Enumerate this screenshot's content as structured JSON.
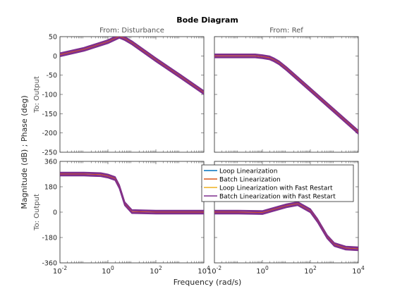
{
  "chart_data": {
    "type": "line",
    "title": "Bode Diagram",
    "xlabel": "Frequency  (rad/s)",
    "ylabel": "Magnitude (dB) ; Phase (deg)",
    "row_label": "To: Output",
    "x_scale": "log",
    "xlim": [
      0.01,
      10000
    ],
    "x_ticks": [
      0.01,
      1,
      100,
      10000
    ],
    "x_tick_labels": [
      [
        "10",
        "-2"
      ],
      [
        "10",
        "0"
      ],
      [
        "10",
        "2"
      ],
      [
        "10",
        "4"
      ]
    ],
    "grid": false,
    "legend_position": "upper-right of bottom-right panel",
    "series": [
      {
        "name": "Loop Linearization",
        "color": "#0072BD"
      },
      {
        "name": "Batch Linearization",
        "color": "#D95319"
      },
      {
        "name": "Loop Linearization with Fast Restart",
        "color": "#EDB120"
      },
      {
        "name": "Batch Linearization with Fast Restart",
        "color": "#7E2F8E"
      }
    ],
    "panels": [
      {
        "id": "mag-disturbance",
        "col_title": "From: Disturbance",
        "kind": "magnitude",
        "ylim": [
          -250,
          50
        ],
        "y_ticks": [
          50,
          0,
          -50,
          -100,
          -150,
          -200,
          -250
        ],
        "curve": {
          "x": [
            0.01,
            0.1,
            1,
            3,
            5,
            10,
            100,
            1000,
            10000
          ],
          "y": [
            3,
            17,
            37,
            51,
            45,
            34,
            -10,
            -52,
            -95
          ]
        }
      },
      {
        "id": "mag-ref",
        "col_title": "From: Ref",
        "kind": "magnitude",
        "ylim": [
          -250,
          50
        ],
        "y_ticks": [
          50,
          0,
          -50,
          -100,
          -150,
          -200,
          -250
        ],
        "curve": {
          "x": [
            0.01,
            0.1,
            0.5,
            1,
            2,
            3,
            5,
            10,
            100,
            1000,
            10000
          ],
          "y": [
            0,
            0,
            0,
            -2,
            -5,
            -10,
            -18,
            -33,
            -88,
            -143,
            -198
          ]
        }
      },
      {
        "id": "phase-disturbance",
        "kind": "phase",
        "ylim": [
          -360,
          360
        ],
        "y_ticks": [
          360,
          180,
          0,
          -180,
          -360
        ],
        "curve": {
          "x": [
            0.01,
            0.1,
            0.5,
            1,
            2,
            3,
            5,
            10,
            100,
            1000,
            10000
          ],
          "y": [
            270,
            270,
            266,
            256,
            238,
            180,
            60,
            4,
            0,
            0,
            0
          ]
        }
      },
      {
        "id": "phase-ref",
        "kind": "phase",
        "ylim": [
          -360,
          360
        ],
        "y_ticks": [
          360,
          180,
          0,
          -180,
          -360
        ],
        "curve": {
          "x": [
            0.01,
            0.1,
            1,
            10,
            30,
            100,
            200,
            500,
            1000,
            3000,
            10000
          ],
          "y": [
            0,
            0,
            -3,
            45,
            60,
            10,
            -60,
            -175,
            -230,
            -255,
            -260
          ]
        }
      }
    ]
  }
}
